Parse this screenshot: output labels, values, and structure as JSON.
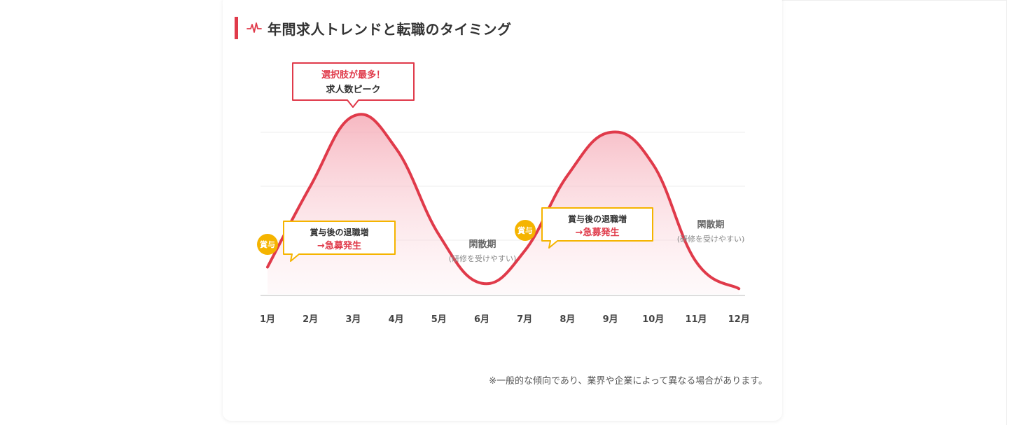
{
  "title": "年間求人トレンドと転職のタイミング",
  "title_icon": "pulse-line-icon",
  "footnote": "※一般的な傾向であり、業界や企業によって異なる場合があります。",
  "colors": {
    "accent": "#e03a4a",
    "bonus": "#f5b400",
    "text": "#333333",
    "muted": "#888888"
  },
  "chart_data": {
    "type": "area",
    "title": "年間求人トレンドと転職のタイミング",
    "xlabel": "",
    "ylabel": "",
    "categories": [
      "1月",
      "2月",
      "3月",
      "4月",
      "5月",
      "6月",
      "7月",
      "8月",
      "9月",
      "10月",
      "11月",
      "12月"
    ],
    "series": [
      {
        "values": [
          5,
          20,
          33,
          27,
          11,
          2,
          8,
          22,
          30,
          24,
          6,
          1
        ]
      }
    ],
    "ylim": [
      0,
      35
    ],
    "grid": true,
    "legend": "none",
    "annotations": [
      {
        "id": "peak",
        "at": "3月",
        "line1": "選択肢が最多！",
        "line2": "求人数ピーク"
      },
      {
        "id": "bonus1",
        "at": "1月",
        "badge": "賞与",
        "line1": "賞与後の退職増",
        "line2": "→急募発生"
      },
      {
        "id": "bonus2",
        "at": "7月",
        "badge": "賞与",
        "line1": "賞与後の退職増",
        "line2": "→急募発生"
      },
      {
        "id": "off1",
        "at": "6月",
        "line1": "閑散期",
        "line2": "(研修を受けやすい)"
      },
      {
        "id": "off2",
        "at": "11月",
        "line1": "閑散期",
        "line2": "(研修を受けやすい)"
      }
    ]
  }
}
